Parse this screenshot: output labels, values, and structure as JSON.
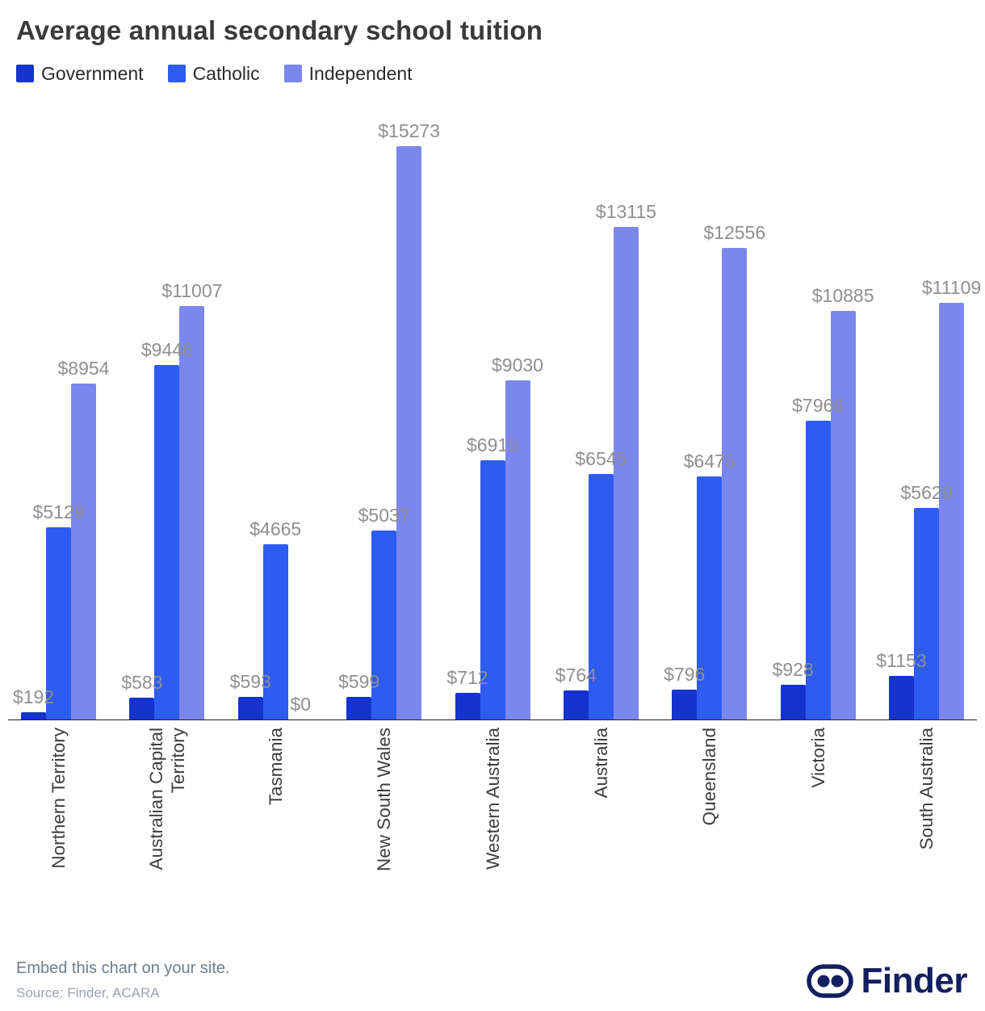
{
  "chart_data": {
    "type": "bar",
    "title": "Average annual secondary school tuition",
    "categories": [
      "Northern Territory",
      "Australian Capital\nTerritory",
      "Tasmania",
      "New South Wales",
      "Western Australia",
      "Australia",
      "Queensland",
      "Victoria",
      "South Australia"
    ],
    "series": [
      {
        "name": "Government",
        "color": "#1434cd",
        "values": [
          192,
          583,
          593,
          599,
          712,
          764,
          796,
          928,
          1153
        ]
      },
      {
        "name": "Catholic",
        "color": "#2e5cf1",
        "values": [
          5129,
          9446,
          4665,
          5037,
          6915,
          6545,
          6475,
          7966,
          5629
        ]
      },
      {
        "name": "Independent",
        "color": "#7b87ed",
        "values": [
          8954,
          11007,
          0,
          15273,
          9030,
          13115,
          12556,
          10885,
          11109
        ]
      }
    ],
    "value_prefix": "$",
    "ylim": [
      0,
      15273
    ],
    "grid": false,
    "bar_labels": true,
    "legend_position": "top-left",
    "xlabel": "",
    "ylabel": ""
  },
  "footer": {
    "embed_text": "Embed this chart on your site.",
    "source_text": "Source: Finder, ACARA",
    "brand": "Finder",
    "brand_color": "#13205f"
  }
}
